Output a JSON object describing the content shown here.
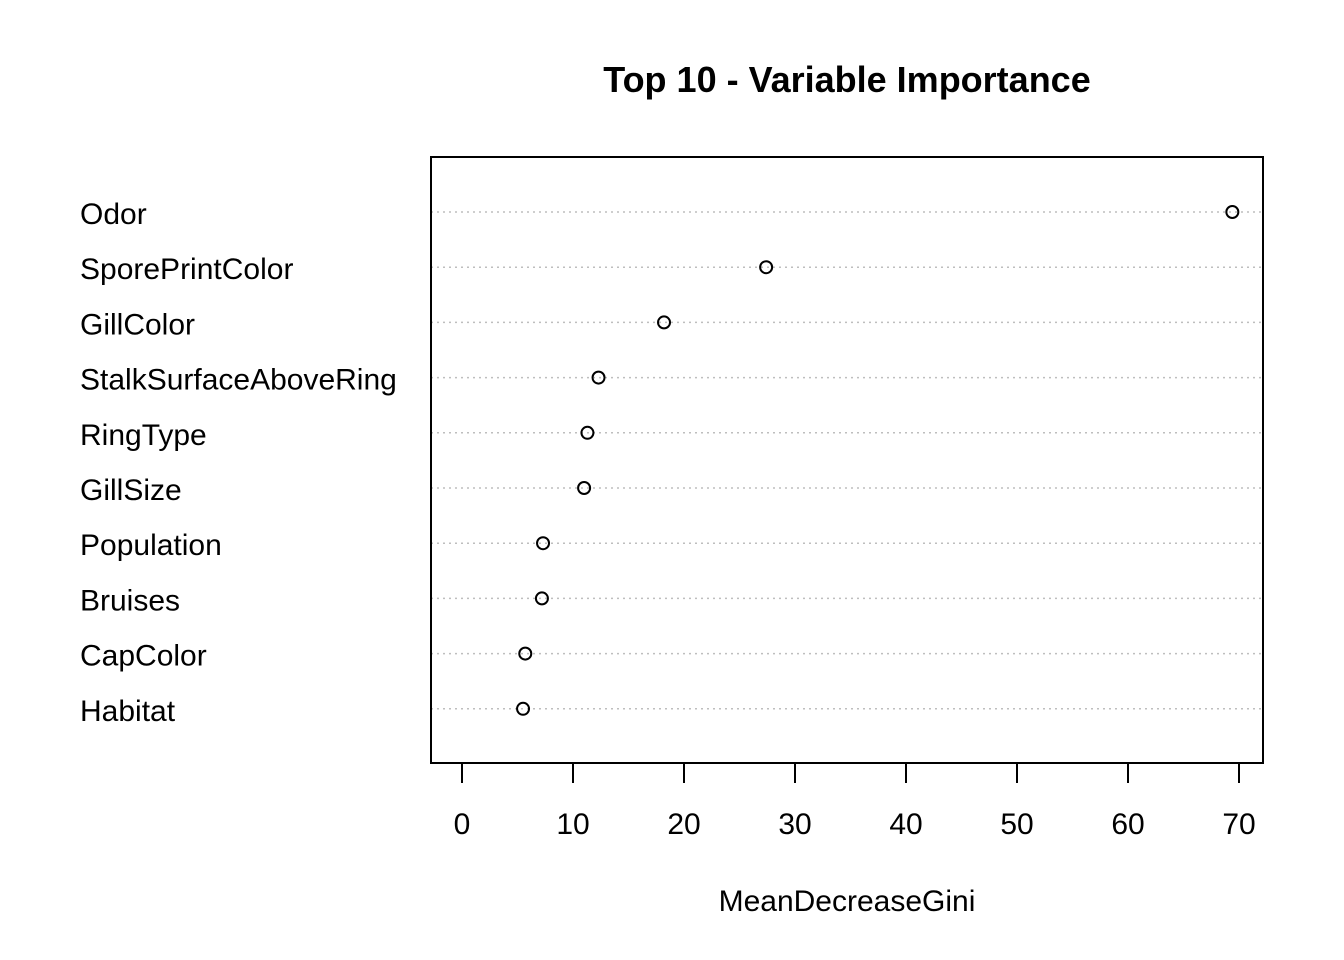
{
  "chart_data": {
    "type": "scatter",
    "title": "Top 10 - Variable Importance",
    "xlabel": "MeanDecreaseGini",
    "ylabel": "",
    "xlim": [
      -2.8,
      72.1
    ],
    "xticks": [
      0,
      10,
      20,
      30,
      40,
      50,
      60,
      70
    ],
    "grid": "horizontal dotted lines per category",
    "legend": "none",
    "categories": [
      "Odor",
      "SporePrintColor",
      "GillColor",
      "StalkSurfaceAboveRing",
      "RingType",
      "GillSize",
      "Population",
      "Bruises",
      "CapColor",
      "Habitat"
    ],
    "values": [
      69.4,
      27.4,
      18.2,
      12.3,
      11.3,
      11.0,
      7.3,
      7.2,
      5.7,
      5.5
    ]
  }
}
